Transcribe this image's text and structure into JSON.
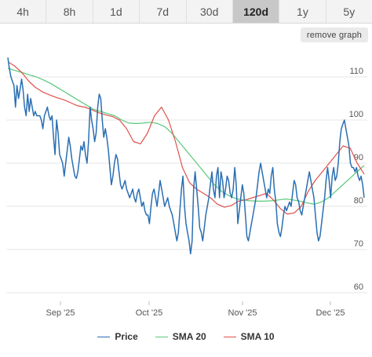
{
  "tabs": [
    {
      "label": "4h",
      "active": false
    },
    {
      "label": "8h",
      "active": false
    },
    {
      "label": "1d",
      "active": false
    },
    {
      "label": "7d",
      "active": false
    },
    {
      "label": "30d",
      "active": false
    },
    {
      "label": "120d",
      "active": true
    },
    {
      "label": "1y",
      "active": false
    },
    {
      "label": "5y",
      "active": false
    }
  ],
  "remove_graph_label": "remove graph",
  "chart_data": {
    "type": "line",
    "x_ticks": [
      "Sep '25",
      "Oct '25",
      "Nov '25",
      "Dec '25"
    ],
    "y_ticks": [
      "60",
      "70",
      "80",
      "90",
      "100",
      "110"
    ],
    "ylim": [
      58,
      116
    ],
    "grid": true,
    "legend_position": "bottom",
    "series": [
      {
        "name": "Price",
        "color": "#2a6fb3",
        "values": [
          114.5,
          112,
          110,
          109,
          108,
          103,
          108,
          105,
          107,
          109.5,
          107,
          103,
          101,
          106,
          102,
          105,
          103,
          101,
          102,
          101,
          101,
          101,
          100,
          98,
          101,
          102,
          103,
          101,
          100,
          101,
          96,
          92,
          100,
          97,
          92,
          91,
          90,
          87,
          90,
          93,
          96,
          94,
          91,
          89,
          87,
          86.5,
          88,
          91,
          94,
          93,
          95,
          92,
          90,
          95,
          103,
          100,
          98,
          95,
          97,
          103,
          106,
          105,
          100,
          96,
          98,
          96,
          93,
          89,
          85,
          87,
          90,
          92,
          91,
          88,
          85,
          84,
          85,
          86,
          84,
          83,
          82,
          83,
          84,
          82,
          81,
          83,
          84,
          82,
          80,
          81,
          79,
          78,
          78,
          76,
          80,
          83,
          84,
          82,
          80,
          83,
          86,
          84,
          82,
          80,
          81,
          82,
          80,
          79,
          78,
          76,
          74,
          72,
          74,
          79,
          84,
          87,
          80,
          76,
          74,
          72,
          69,
          72,
          84,
          88,
          84,
          80,
          75,
          74,
          72,
          75,
          78,
          80,
          82,
          85,
          88,
          84,
          82,
          87,
          89,
          82,
          88,
          86,
          82,
          84,
          87,
          86,
          83,
          82,
          84,
          89,
          85,
          76,
          79,
          82,
          85,
          83,
          78,
          73,
          72,
          74,
          76,
          78,
          80,
          82,
          85,
          88,
          90,
          88,
          86,
          84,
          82,
          84,
          83,
          87,
          89,
          84,
          81,
          76,
          74,
          73,
          75,
          78,
          80,
          79,
          80,
          81,
          80,
          83,
          86,
          85,
          82,
          81,
          79,
          78,
          80,
          82,
          84,
          86,
          88,
          86,
          84,
          82,
          78,
          74,
          72,
          73,
          76,
          79,
          82,
          86,
          89,
          86,
          82,
          87,
          89,
          86,
          87,
          90,
          95,
          98,
          99,
          100,
          98,
          96,
          94,
          90,
          89,
          89,
          88,
          89,
          87,
          86,
          87,
          85,
          82
        ],
        "x_range": [
          0,
          240
        ]
      },
      {
        "name": "SMA 20",
        "color": "#5ac97a",
        "values": [
          112,
          111.5,
          111,
          110.5,
          110,
          109.3,
          108.5,
          107.5,
          106.5,
          105.5,
          104.5,
          103.5,
          102.5,
          102,
          101.5,
          101,
          100,
          99.3,
          99.2,
          99.3,
          99.5,
          99.2,
          98.5,
          97,
          95,
          93,
          91,
          89,
          87,
          85,
          83.5,
          82.5,
          81.8,
          81.5,
          81.3,
          81.2,
          81.2,
          81.3,
          81.5,
          81.7,
          81.5,
          81.2,
          80.8,
          80.5,
          81,
          82,
          83.5,
          85,
          86.5,
          88,
          89.5
        ],
        "x_range": [
          0,
          240
        ]
      },
      {
        "name": "SMA 10",
        "color": "#e0504a",
        "values": [
          113.5,
          112.5,
          111,
          109,
          107.5,
          106.5,
          105.8,
          105.2,
          104.7,
          104,
          103.3,
          103,
          102.4,
          101.7,
          101.2,
          100.8,
          100,
          98,
          95,
          94.5,
          97,
          101,
          103,
          100,
          95,
          89,
          85.5,
          84,
          83,
          82,
          80.5,
          79.8,
          80.2,
          81.2,
          81.5,
          82,
          82.5,
          83,
          81.5,
          79.5,
          78.2,
          78.5,
          80,
          83.5,
          86,
          88,
          90,
          92,
          94,
          93.5,
          90,
          87.5
        ],
        "x_range": [
          0,
          240
        ]
      }
    ]
  }
}
